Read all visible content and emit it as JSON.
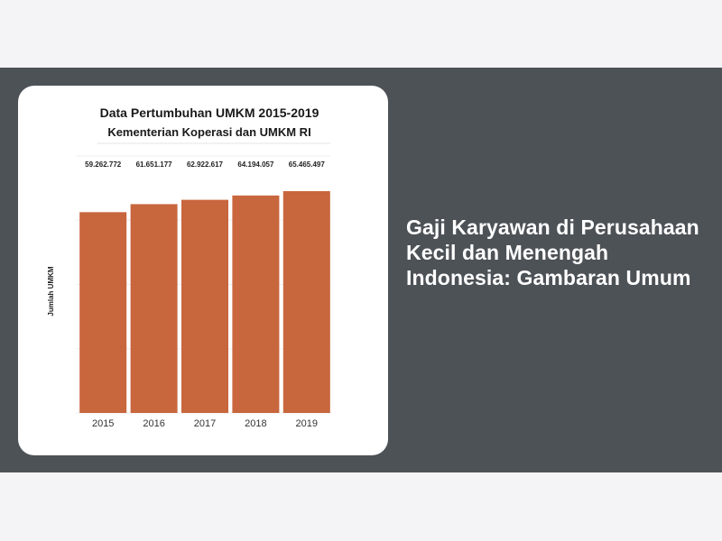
{
  "hero": {
    "title": "Gaji Karyawan di Perusahaan Kecil dan Menengah Indonesia: Gambaran Umum"
  },
  "chart_data": {
    "type": "bar",
    "title": "Data Pertumbuhan UMKM 2015-2019",
    "subtitle": "Kementerian Koperasi dan UMKM RI",
    "xlabel": "",
    "ylabel": "Jumlah UMKM",
    "categories": [
      "2015",
      "2016",
      "2017",
      "2018",
      "2019"
    ],
    "values": [
      59262772,
      61651177,
      62922617,
      64194057,
      65465497
    ],
    "value_labels": [
      "59.262.772",
      "61.651.177",
      "62.922.617",
      "64.194.057",
      "65.465.497"
    ],
    "ylim": [
      0,
      70000000
    ],
    "grid": true,
    "legend": "none",
    "bar_color": "#c8663d"
  }
}
